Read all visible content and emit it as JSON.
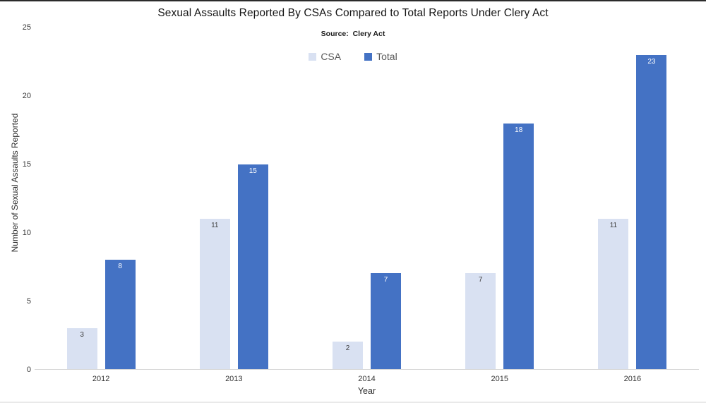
{
  "chart_data": {
    "type": "bar",
    "title": "Sexual Assaults Reported By CSAs Compared to Total Reports Under Clery Act",
    "subtitle": "Source:  Clery Act",
    "categories": [
      "2012",
      "2013",
      "2014",
      "2015",
      "2016"
    ],
    "series": [
      {
        "name": "CSA",
        "color": "#D9E1F2",
        "label_color": "#404040",
        "values": [
          3,
          11,
          2,
          7,
          11
        ]
      },
      {
        "name": "Total",
        "color": "#4472C4",
        "label_color": "#FFFFFF",
        "values": [
          8,
          15,
          7,
          18,
          23
        ]
      }
    ],
    "xlabel": "Year",
    "ylabel": "Number of Sexual Assaults Reported",
    "ylim": [
      0,
      25
    ],
    "y_ticks": [
      0,
      5,
      10,
      15,
      20,
      25
    ],
    "grid": false,
    "legend_position": "top-center",
    "data_labels": "inside_end",
    "colors": {
      "axis_line": "#D9D9D9",
      "tick_text": "#3A3A3A",
      "legend_text": "#595959",
      "title_text": "#151515"
    }
  }
}
